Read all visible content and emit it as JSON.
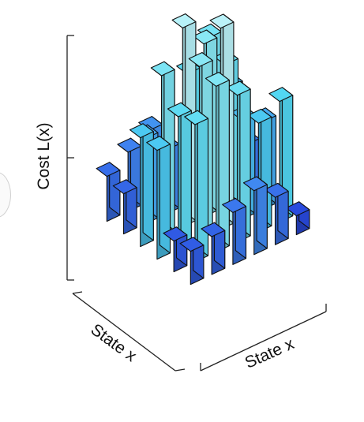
{
  "chart_data": {
    "type": "bar3d",
    "ylabel": "Cost L(x)",
    "xlabel_left": "State x",
    "xlabel_right": "State x",
    "grid_size": [
      6,
      6
    ],
    "zlim": [
      0,
      100
    ],
    "values": [
      [
        19,
        25,
        30,
        14,
        26,
        43
      ],
      [
        17,
        36,
        27,
        55,
        66,
        41
      ],
      [
        46,
        68,
        84,
        73,
        60,
        22
      ],
      [
        46,
        56,
        73,
        85,
        42,
        37
      ],
      [
        13,
        58,
        70,
        62,
        46,
        51
      ],
      [
        14,
        16,
        22,
        27,
        20,
        8
      ]
    ],
    "colorscale": [
      "#1f2fd6",
      "#3f82f0",
      "#4fd6f2",
      "#8eeaf5",
      "#ffffff"
    ]
  }
}
